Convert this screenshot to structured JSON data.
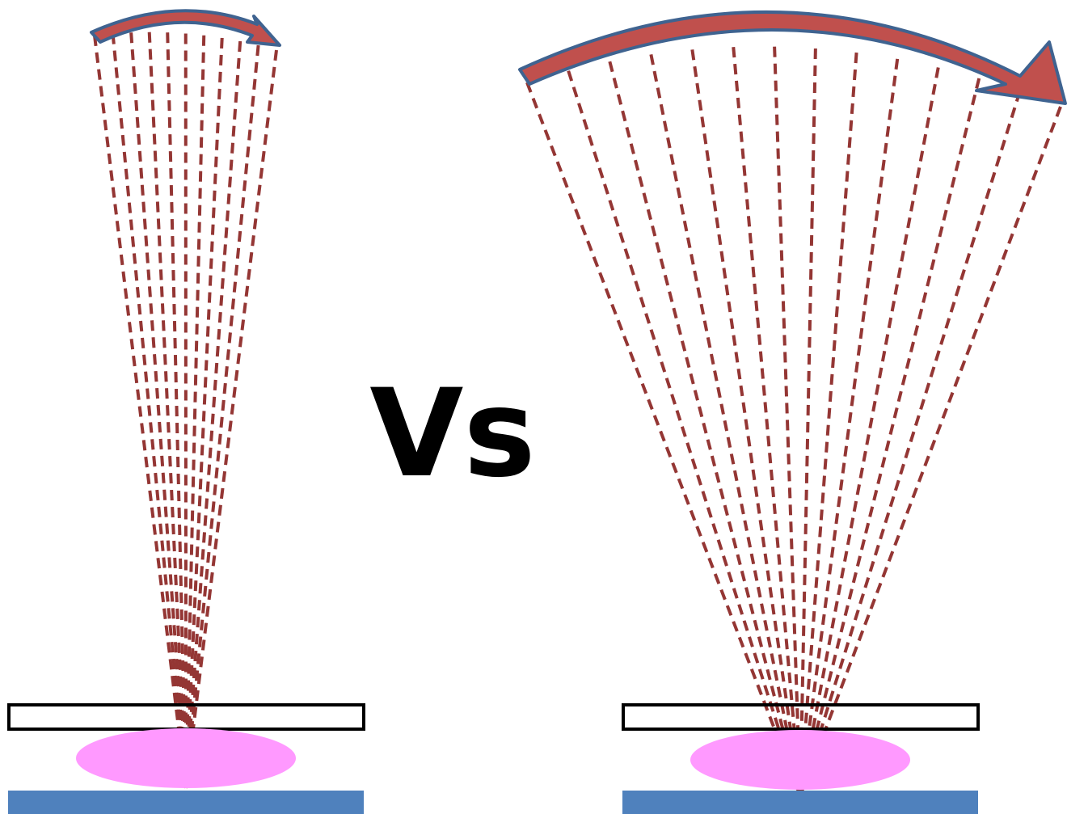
{
  "label": "Vs"
}
